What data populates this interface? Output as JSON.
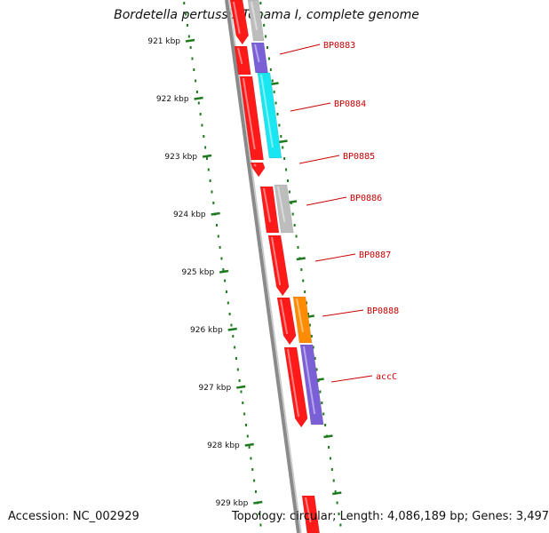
{
  "title": "Bordetella pertussis Tohama I, complete genome",
  "footer": {
    "accession": "Accession: NC_002929",
    "stats": "Topology: circular; Length: 4,086,189 bp; Genes: 3,497"
  },
  "scale_ticks": [
    "921 kbp",
    "922 kbp",
    "923 kbp",
    "924 kbp",
    "925 kbp",
    "926 kbp",
    "927 kbp",
    "928 kbp",
    "929 kbp"
  ],
  "gene_labels": [
    "BP0883",
    "BP0884",
    "BP0885",
    "BP0886",
    "BP0887",
    "BP0888",
    "accC"
  ],
  "colors": {
    "cds": "#ff1a1a",
    "backbone": "#888888",
    "label": "#cc0000",
    "tick": "#1f7a1f",
    "purple": "#7b5fd6",
    "cyan": "#19e6f0",
    "gray": "#bdbdbd",
    "orange": "#ff8c00"
  }
}
